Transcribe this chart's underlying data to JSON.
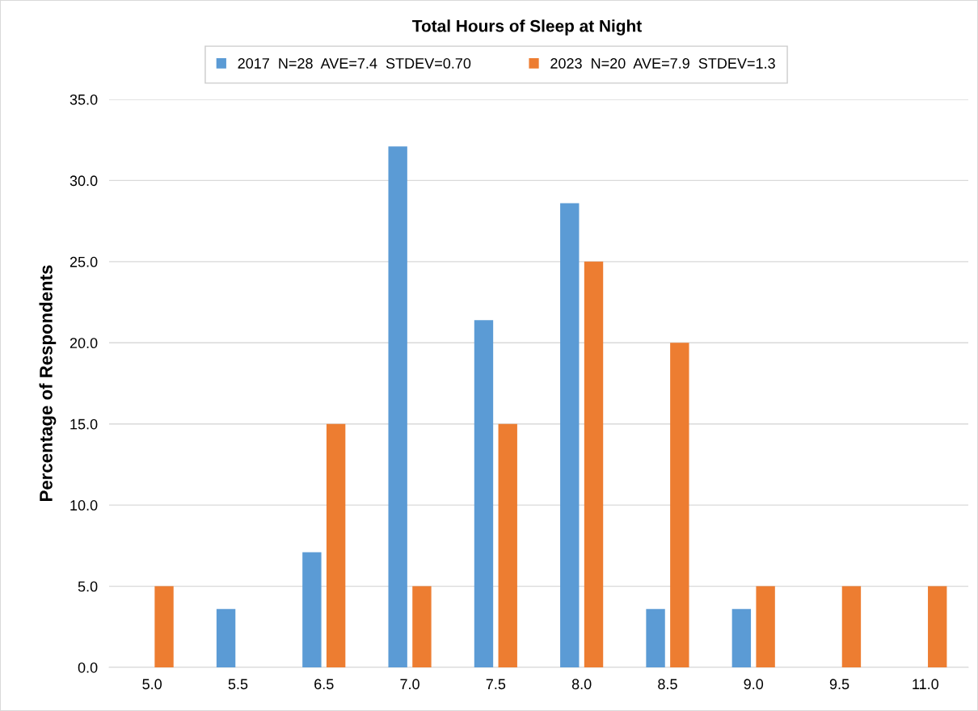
{
  "chart_data": {
    "type": "bar",
    "title": "Total Hours of Sleep at Night",
    "ylabel": "Percentage of Respondents",
    "categories": [
      "5.0",
      "5.5",
      "6.5",
      "7.0",
      "7.5",
      "8.0",
      "8.5",
      "9.0",
      "9.5",
      "11.0"
    ],
    "series": [
      {
        "name": "2017  N=28  AVE=7.4  STDEV=0.70",
        "color": "#5b9bd5",
        "values": [
          null,
          3.6,
          7.1,
          32.1,
          21.4,
          28.6,
          3.6,
          3.6,
          null,
          null
        ]
      },
      {
        "name": "2023  N=20  AVE=7.9  STDEV=1.3",
        "color": "#ed7d31",
        "values": [
          5,
          null,
          15,
          5,
          15,
          25,
          20,
          5,
          5,
          5
        ]
      }
    ],
    "ylim": [
      0,
      35
    ],
    "yticks": [
      {
        "value": 0,
        "label": "0.0"
      },
      {
        "value": 5,
        "label": "5.0"
      },
      {
        "value": 10,
        "label": "10.0"
      },
      {
        "value": 15,
        "label": "15.0"
      },
      {
        "value": 20,
        "label": "20.0"
      },
      {
        "value": 25,
        "label": "25.0"
      },
      {
        "value": 30,
        "label": "30.0"
      },
      {
        "value": 35,
        "label": "35.0"
      }
    ],
    "grid": "y",
    "legend": "top"
  }
}
